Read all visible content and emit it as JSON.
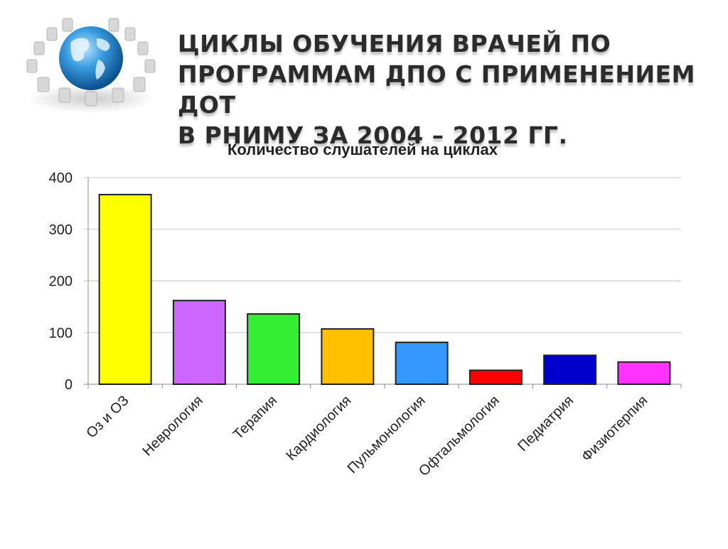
{
  "slide": {
    "title_lines": [
      "Циклы обучения врачей по",
      "программам ДПО с применением ДОТ",
      "в РНИМУ за 2004 – 2012 гг."
    ]
  },
  "logo": {
    "icon": "globe-with-chairs-icon"
  },
  "chart_data": {
    "type": "bar",
    "title": "Количество слушателей на циклах",
    "xlabel": "",
    "ylabel": "",
    "ylim": [
      0,
      400
    ],
    "yticks": [
      0,
      100,
      200,
      300,
      400
    ],
    "grid": true,
    "legend": "none",
    "categories": [
      "Оз и ОЗ",
      "Неврология",
      "Терапия",
      "Кардиология",
      "Пульмонология",
      "Офтальмология",
      "Педиатрия",
      "Физиотерпия"
    ],
    "values": [
      367,
      162,
      136,
      107,
      81,
      27,
      56,
      43
    ],
    "colors": [
      "#ffff00",
      "#cc66ff",
      "#33ee33",
      "#ffc000",
      "#3399ff",
      "#ff0000",
      "#0000cc",
      "#ff33ff"
    ]
  }
}
